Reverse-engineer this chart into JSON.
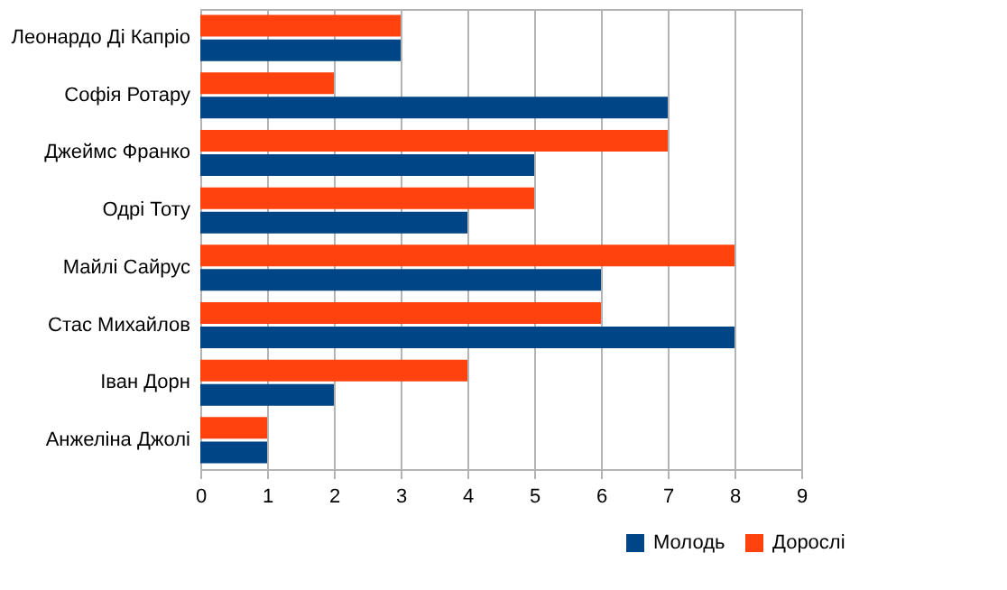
{
  "chart_data": {
    "type": "bar",
    "orientation": "horizontal",
    "categories": [
      "Леонардо Ді Капріо",
      "Софія Ротару",
      "Джеймс Франко",
      "Одрі Тоту",
      "Майлі Сайрус",
      "Стас Михайлов",
      "Іван Дорн",
      "Анжеліна Джолі"
    ],
    "series": [
      {
        "name": "Молодь",
        "color": "#004586",
        "values": [
          3,
          7,
          5,
          4,
          6,
          8,
          2,
          1
        ]
      },
      {
        "name": "Дорослі",
        "color": "#ff420e",
        "values": [
          3,
          2,
          7,
          5,
          8,
          6,
          4,
          1
        ]
      }
    ],
    "xlim": [
      0,
      9
    ],
    "xticks": [
      0,
      1,
      2,
      3,
      4,
      5,
      6,
      7,
      8,
      9
    ],
    "grid": "x",
    "legend": "bottom right"
  }
}
